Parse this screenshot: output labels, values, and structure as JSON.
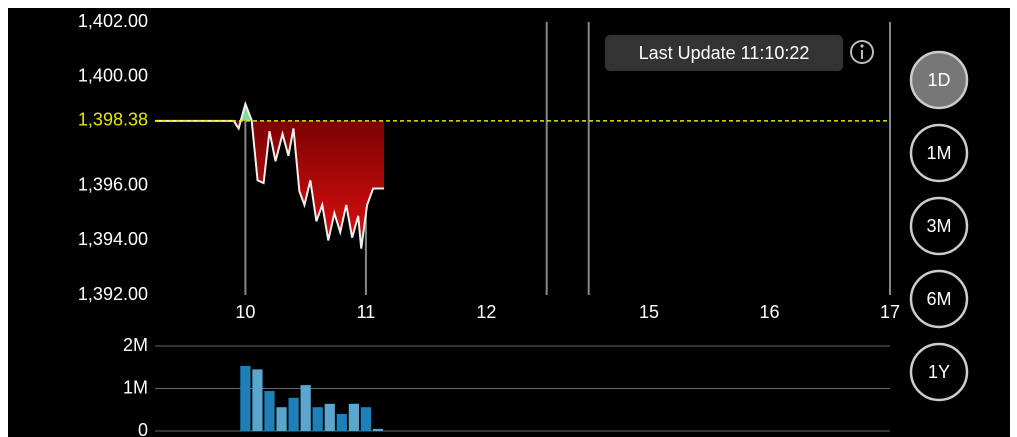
{
  "chart_data": [
    {
      "type": "line",
      "x": [
        9.25,
        9.903,
        9.944,
        10.0,
        10.052,
        10.101,
        10.151,
        10.2,
        10.25,
        10.308,
        10.357,
        10.399,
        10.448,
        10.49,
        10.539,
        10.589,
        10.638,
        10.688,
        10.738,
        10.787,
        10.837,
        10.886,
        10.936,
        10.961,
        11.01,
        11.06,
        11.151
      ],
      "values": [
        1398.38,
        1398.38,
        1398.1,
        1399.0,
        1398.4,
        1396.2,
        1396.1,
        1398.0,
        1396.9,
        1397.9,
        1397.1,
        1398.1,
        1395.8,
        1395.3,
        1396.2,
        1394.7,
        1395.3,
        1394.0,
        1395.0,
        1394.3,
        1395.3,
        1394.1,
        1394.9,
        1393.7,
        1395.3,
        1395.9,
        1395.9
      ],
      "xlim": [
        9.25,
        17
      ],
      "xticks": [
        10,
        11,
        12,
        15,
        16,
        17
      ],
      "breaks": [
        12.5,
        14.5
      ],
      "ylim": [
        1392,
        1402
      ],
      "yticks": [
        {
          "value": 1392,
          "label": "1,392.00"
        },
        {
          "value": 1394,
          "label": "1,394.00"
        },
        {
          "value": 1396,
          "label": "1,396.00"
        },
        {
          "value": 1400,
          "label": "1,400.00"
        },
        {
          "value": 1402,
          "label": "1,402.00"
        }
      ],
      "reference": {
        "value": 1398.38,
        "label": "1,398.38"
      },
      "color": "#f0f0f0",
      "up_color": "#7fdc8f",
      "down_color": "#b00000",
      "reference_color": "#e6e600"
    },
    {
      "type": "bar",
      "x": [
        10.0,
        10.1,
        10.2,
        10.3,
        10.4,
        10.5,
        10.6,
        10.7,
        10.8,
        10.9,
        11.0,
        11.1
      ],
      "values": [
        1530000,
        1450000,
        940000,
        560000,
        780000,
        1080000,
        560000,
        640000,
        400000,
        640000,
        560000,
        50000
      ],
      "ylim": [
        0,
        2000000
      ],
      "yticks": [
        {
          "value": 0,
          "label": "0"
        },
        {
          "value": 1000000,
          "label": "1M"
        },
        {
          "value": 2000000,
          "label": "2M"
        }
      ],
      "colors": [
        "#1f7fb8",
        "#5aa6cf"
      ]
    }
  ],
  "last_update": "Last Update 11:10:22",
  "buttons": [
    {
      "label": "1D",
      "selected": true
    },
    {
      "label": "1M",
      "selected": false
    },
    {
      "label": "3M",
      "selected": false
    },
    {
      "label": "6M",
      "selected": false
    },
    {
      "label": "1Y",
      "selected": false
    }
  ]
}
